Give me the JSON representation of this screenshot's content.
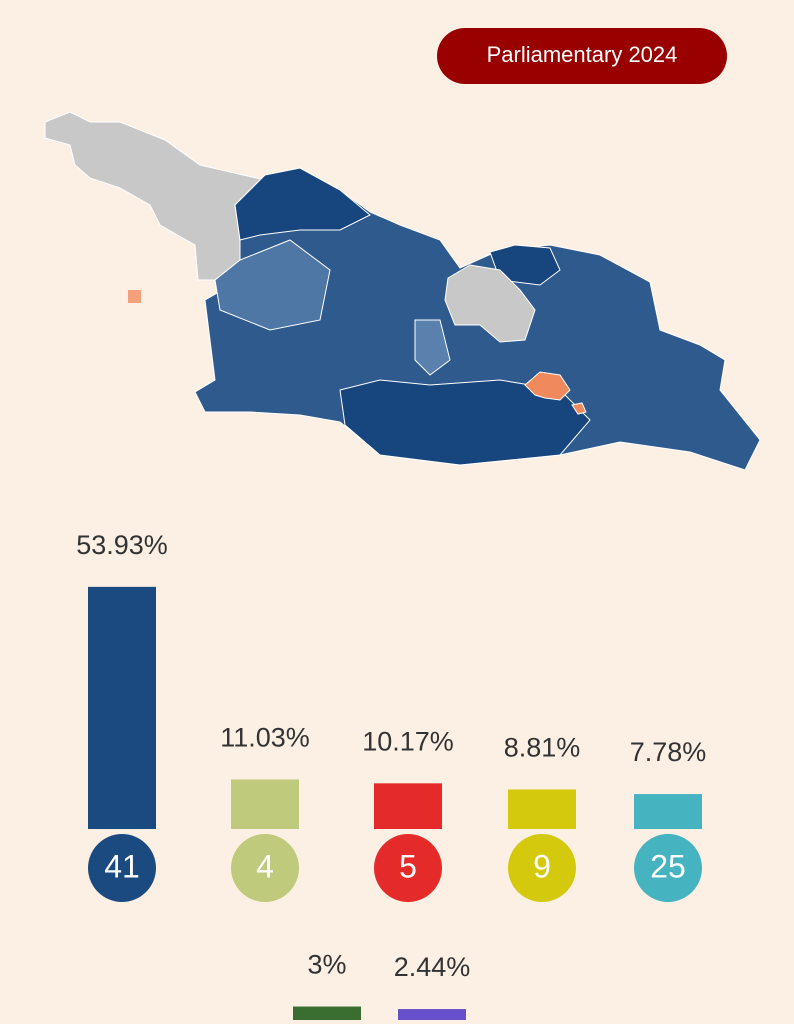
{
  "header": {
    "button": "Parliamentary 2024"
  },
  "chart_data": {
    "type": "bar",
    "values": [
      53.93,
      11.03,
      10.17,
      8.81,
      7.78,
      3,
      2.44
    ],
    "value_labels": [
      "53.93%",
      "11.03%",
      "10.17%",
      "8.81%",
      "7.78%",
      "3%",
      "2.44%"
    ],
    "colors": [
      "#1a4a80",
      "#bfca7c",
      "#e52a2a",
      "#d4c90c",
      "#46b3c0",
      "#3a6e30",
      "#6650cc"
    ],
    "party_numbers": [
      41,
      4,
      5,
      9,
      25
    ]
  }
}
